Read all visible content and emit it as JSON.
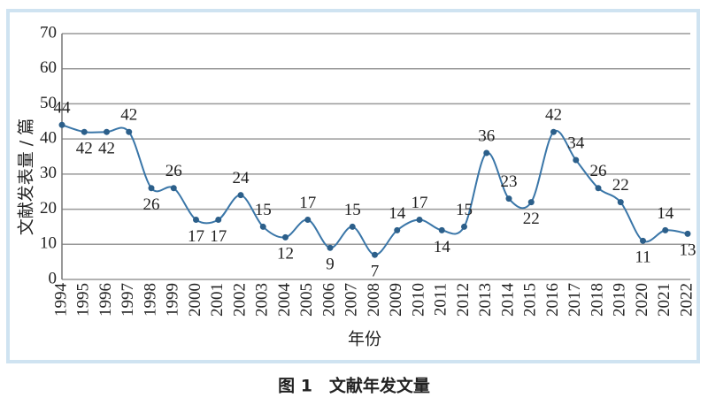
{
  "chart_data": {
    "type": "line",
    "caption": "图 1　文献年发文量",
    "xlabel": "年份",
    "ylabel": "文献发表量 / 篇",
    "categories": [
      "1994",
      "1995",
      "1996",
      "1997",
      "1998",
      "1999",
      "2000",
      "2001",
      "2002",
      "2003",
      "2004",
      "2005",
      "2006",
      "2007",
      "2008",
      "2009",
      "2010",
      "2011",
      "2012",
      "2013",
      "2014",
      "2015",
      "2016",
      "2017",
      "2018",
      "2019",
      "2020",
      "2021",
      "2022"
    ],
    "values": [
      44,
      42,
      42,
      42,
      26,
      26,
      17,
      17,
      24,
      15,
      12,
      17,
      9,
      15,
      7,
      14,
      17,
      14,
      15,
      36,
      23,
      22,
      42,
      34,
      26,
      22,
      11,
      14,
      13
    ],
    "color": "#3a76a8",
    "ylim": [
      0,
      70
    ],
    "yticks": [
      0,
      10,
      20,
      30,
      40,
      50,
      60,
      70
    ],
    "grid": true
  }
}
